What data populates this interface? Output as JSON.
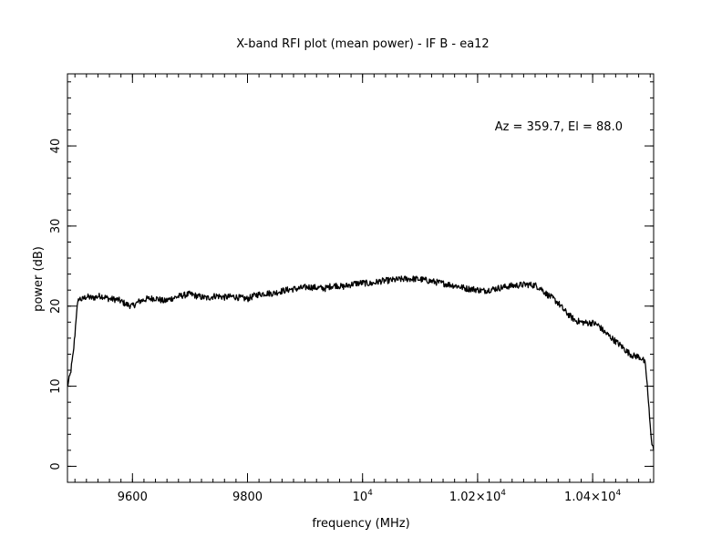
{
  "chart_data": {
    "type": "line",
    "title": "X-band RFI plot (mean power) - IF B - ea12",
    "xlabel": "frequency (MHz)",
    "ylabel": "power (dB)",
    "annotation": "Az = 359.7, El = 88.0",
    "xlim": [
      9487,
      10506
    ],
    "ylim": [
      -2,
      49
    ],
    "x_major_ticks": [
      {
        "value": 9600,
        "label": "9600"
      },
      {
        "value": 9800,
        "label": "9800"
      },
      {
        "value": 10000,
        "label": "10",
        "sup": "4"
      },
      {
        "value": 10200,
        "label": "1.02×10",
        "sup": "4"
      },
      {
        "value": 10400,
        "label": "1.04×10",
        "sup": "4"
      }
    ],
    "y_major_ticks": [
      {
        "value": 0,
        "label": "0"
      },
      {
        "value": 10,
        "label": "10"
      },
      {
        "value": 20,
        "label": "20"
      },
      {
        "value": 30,
        "label": "30"
      },
      {
        "value": 40,
        "label": "40"
      }
    ],
    "x_minor_step": 20,
    "y_minor_step": 2,
    "grid": false,
    "line_color": "#000000",
    "series": [
      {
        "values": [
          [
            9487,
            10
          ],
          [
            9492,
            11.5
          ],
          [
            9497,
            14
          ],
          [
            9500,
            16.5
          ],
          [
            9503,
            19.5
          ],
          [
            9507,
            21
          ],
          [
            9512,
            20.8
          ],
          [
            9520,
            21.2
          ],
          [
            9530,
            21.0
          ],
          [
            9545,
            21.3
          ],
          [
            9560,
            20.9
          ],
          [
            9575,
            20.8
          ],
          [
            9590,
            20.2
          ],
          [
            9600,
            20.0
          ],
          [
            9612,
            20.6
          ],
          [
            9625,
            20.9
          ],
          [
            9640,
            21.0
          ],
          [
            9655,
            20.6
          ],
          [
            9670,
            21.0
          ],
          [
            9685,
            21.3
          ],
          [
            9700,
            21.5
          ],
          [
            9715,
            21.2
          ],
          [
            9730,
            21.0
          ],
          [
            9745,
            21.3
          ],
          [
            9760,
            21.1
          ],
          [
            9775,
            21.2
          ],
          [
            9790,
            21.0
          ],
          [
            9800,
            20.9
          ],
          [
            9815,
            21.4
          ],
          [
            9830,
            21.6
          ],
          [
            9845,
            21.6
          ],
          [
            9860,
            21.9
          ],
          [
            9875,
            22.1
          ],
          [
            9890,
            22.2
          ],
          [
            9905,
            22.4
          ],
          [
            9920,
            22.3
          ],
          [
            9935,
            22.2
          ],
          [
            9945,
            22.5
          ],
          [
            9955,
            22.6
          ],
          [
            9965,
            22.4
          ],
          [
            9975,
            22.6
          ],
          [
            9985,
            22.8
          ],
          [
            10000,
            22.9
          ],
          [
            10015,
            22.8
          ],
          [
            10030,
            23.1
          ],
          [
            10045,
            23.2
          ],
          [
            10060,
            23.3
          ],
          [
            10075,
            23.4
          ],
          [
            10090,
            23.4
          ],
          [
            10105,
            23.3
          ],
          [
            10120,
            23.1
          ],
          [
            10135,
            22.9
          ],
          [
            10150,
            22.7
          ],
          [
            10165,
            22.5
          ],
          [
            10180,
            22.2
          ],
          [
            10195,
            22.1
          ],
          [
            10210,
            21.9
          ],
          [
            10225,
            22.1
          ],
          [
            10240,
            22.3
          ],
          [
            10255,
            22.5
          ],
          [
            10270,
            22.6
          ],
          [
            10285,
            22.7
          ],
          [
            10300,
            22.6
          ],
          [
            10310,
            22.2
          ],
          [
            10320,
            21.5
          ],
          [
            10330,
            21.0
          ],
          [
            10340,
            20.4
          ],
          [
            10350,
            19.5
          ],
          [
            10360,
            18.8
          ],
          [
            10370,
            18.2
          ],
          [
            10380,
            18.0
          ],
          [
            10390,
            17.9
          ],
          [
            10400,
            17.9
          ],
          [
            10410,
            17.6
          ],
          [
            10420,
            16.8
          ],
          [
            10430,
            16.2
          ],
          [
            10440,
            15.6
          ],
          [
            10450,
            15.0
          ],
          [
            10460,
            14.3
          ],
          [
            10470,
            13.8
          ],
          [
            10480,
            13.7
          ],
          [
            10487,
            13.4
          ],
          [
            10491,
            12.8
          ],
          [
            10494,
            11.0
          ],
          [
            10497,
            8.0
          ],
          [
            10500,
            5.0
          ],
          [
            10503,
            3.0
          ],
          [
            10506,
            2.0
          ]
        ]
      }
    ]
  }
}
